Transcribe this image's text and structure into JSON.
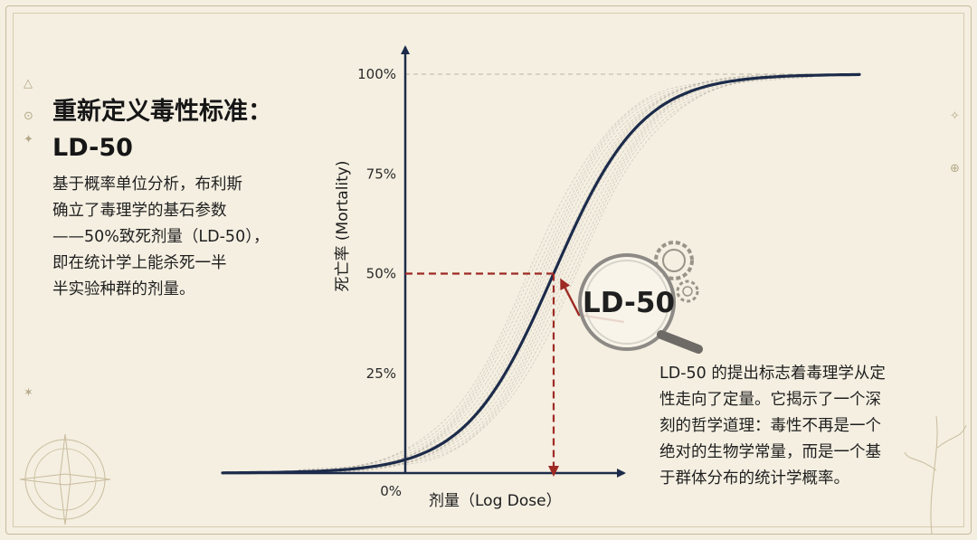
{
  "heading": {
    "title_line1": "重新定义毒性标准：",
    "title_line2": "LD-50"
  },
  "description_lines": [
    "基于概率单位分析，布利斯",
    "确立了毒理学的基石参数",
    "——50%致死剂量（LD-50），",
    "即在统计学上能杀死一半",
    "半实验种群的剂量。"
  ],
  "annotation_lines": [
    "LD-50 的提出标志着毒理学从定",
    "性走向了定量。它揭示了一个深",
    "刻的哲学道理：毒性不再是一个",
    "绝对的生物学常量，而是一个基",
    "于群体分布的统计学概率。"
  ],
  "chart_data": {
    "type": "line",
    "xlabel": "剂量（Log Dose）",
    "ylabel": "死亡率 (Mortality)",
    "ylim": [
      0,
      100
    ],
    "y_ticks": [
      {
        "value": 0,
        "label": "0%"
      },
      {
        "value": 25,
        "label": "25%"
      },
      {
        "value": 50,
        "label": "50%"
      },
      {
        "value": 75,
        "label": "75%"
      },
      {
        "value": 100,
        "label": "100%"
      }
    ],
    "grid": "dashed horizontal at 100%",
    "curve": "sigmoid (cumulative normal) dose-response",
    "series": [
      {
        "name": "",
        "color": "#1c2b4a"
      }
    ],
    "ld50": {
      "label": "LD-50",
      "y_value": 50,
      "marker_color": "#9e2a24"
    }
  },
  "icons": [
    "magnifier-icon",
    "gear-icon",
    "compass-icon",
    "sparkle-icon"
  ],
  "colors": {
    "curve": "#1c2b4a",
    "ld50_marker": "#9e2a24",
    "background": "#f4efe1"
  }
}
